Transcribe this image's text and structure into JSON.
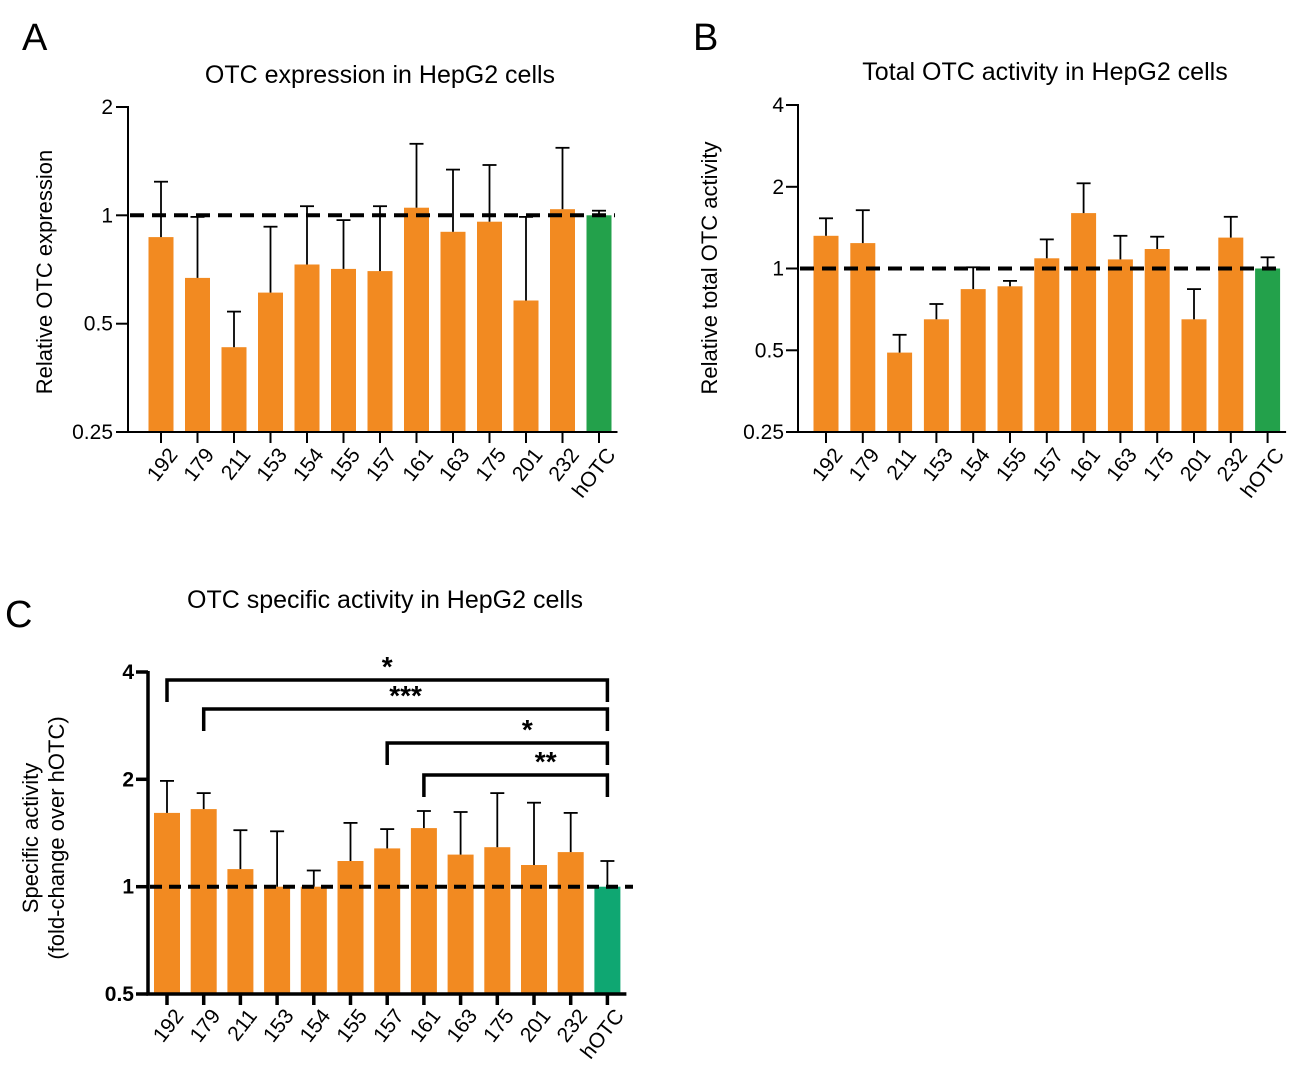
{
  "colors": {
    "bar": "#f28a21",
    "control_a": "#23a14b",
    "control_b": "#23a14b",
    "control_c": "#0fa772",
    "axis": "#000000",
    "reference_line": "#000000"
  },
  "chart_data": [
    {
      "panel": "A",
      "type": "bar",
      "title": "OTC expression in HepG2 cells",
      "xlabel": "",
      "ylabel": "Relative OTC expression",
      "yscale": "log2",
      "ylim": [
        0.25,
        2
      ],
      "yticks": [
        "0.25",
        "0.5",
        "1",
        "2"
      ],
      "reference_line": 1,
      "categories": [
        "192",
        "179",
        "211",
        "153",
        "154",
        "155",
        "157",
        "161",
        "163",
        "175",
        "201",
        "232",
        "hOTC"
      ],
      "values": [
        0.87,
        0.67,
        0.43,
        0.61,
        0.73,
        0.71,
        0.7,
        1.05,
        0.9,
        0.96,
        0.58,
        1.04,
        1.0
      ],
      "error_upper": [
        1.24,
        0.99,
        0.54,
        0.93,
        1.06,
        0.97,
        1.06,
        1.58,
        1.34,
        1.38,
        0.99,
        1.54,
        1.03
      ]
    },
    {
      "panel": "B",
      "type": "bar",
      "title": "Total OTC activity in HepG2 cells",
      "xlabel": "",
      "ylabel": "Relative total OTC activity",
      "yscale": "log2",
      "ylim": [
        0.25,
        4
      ],
      "yticks": [
        "0.25",
        "0.5",
        "1",
        "2",
        "4"
      ],
      "reference_line": 1,
      "categories": [
        "192",
        "179",
        "211",
        "153",
        "154",
        "155",
        "157",
        "161",
        "163",
        "175",
        "201",
        "232",
        "hOTC"
      ],
      "values": [
        1.32,
        1.24,
        0.49,
        0.65,
        0.84,
        0.86,
        1.09,
        1.6,
        1.08,
        1.18,
        0.65,
        1.3,
        1.0
      ],
      "error_upper": [
        1.53,
        1.64,
        0.57,
        0.74,
        1.01,
        0.9,
        1.28,
        2.06,
        1.32,
        1.31,
        0.84,
        1.55,
        1.1
      ]
    },
    {
      "panel": "C",
      "type": "bar",
      "title": "OTC specific activity in HepG2 cells",
      "xlabel": "",
      "ylabel": [
        "Specific activity",
        "(fold-change over hOTC)"
      ],
      "yscale": "log2",
      "ylim": [
        0.5,
        4
      ],
      "yticks": [
        "0.5",
        "1",
        "2",
        "4"
      ],
      "reference_line": 1,
      "categories": [
        "192",
        "179",
        "211",
        "153",
        "154",
        "155",
        "157",
        "161",
        "163",
        "175",
        "201",
        "232",
        "hOTC"
      ],
      "values": [
        1.61,
        1.65,
        1.12,
        1.0,
        1.0,
        1.18,
        1.28,
        1.46,
        1.23,
        1.29,
        1.15,
        1.25,
        1.0
      ],
      "error_upper": [
        1.98,
        1.83,
        1.44,
        1.43,
        1.11,
        1.51,
        1.45,
        1.63,
        1.62,
        1.83,
        1.72,
        1.61,
        1.18
      ],
      "significance": [
        {
          "from": "192",
          "to": "hOTC",
          "label": "*"
        },
        {
          "from": "179",
          "to": "hOTC",
          "label": "***"
        },
        {
          "from": "157",
          "to": "hOTC",
          "label": "*"
        },
        {
          "from": "161",
          "to": "hOTC",
          "label": "**"
        }
      ]
    }
  ]
}
